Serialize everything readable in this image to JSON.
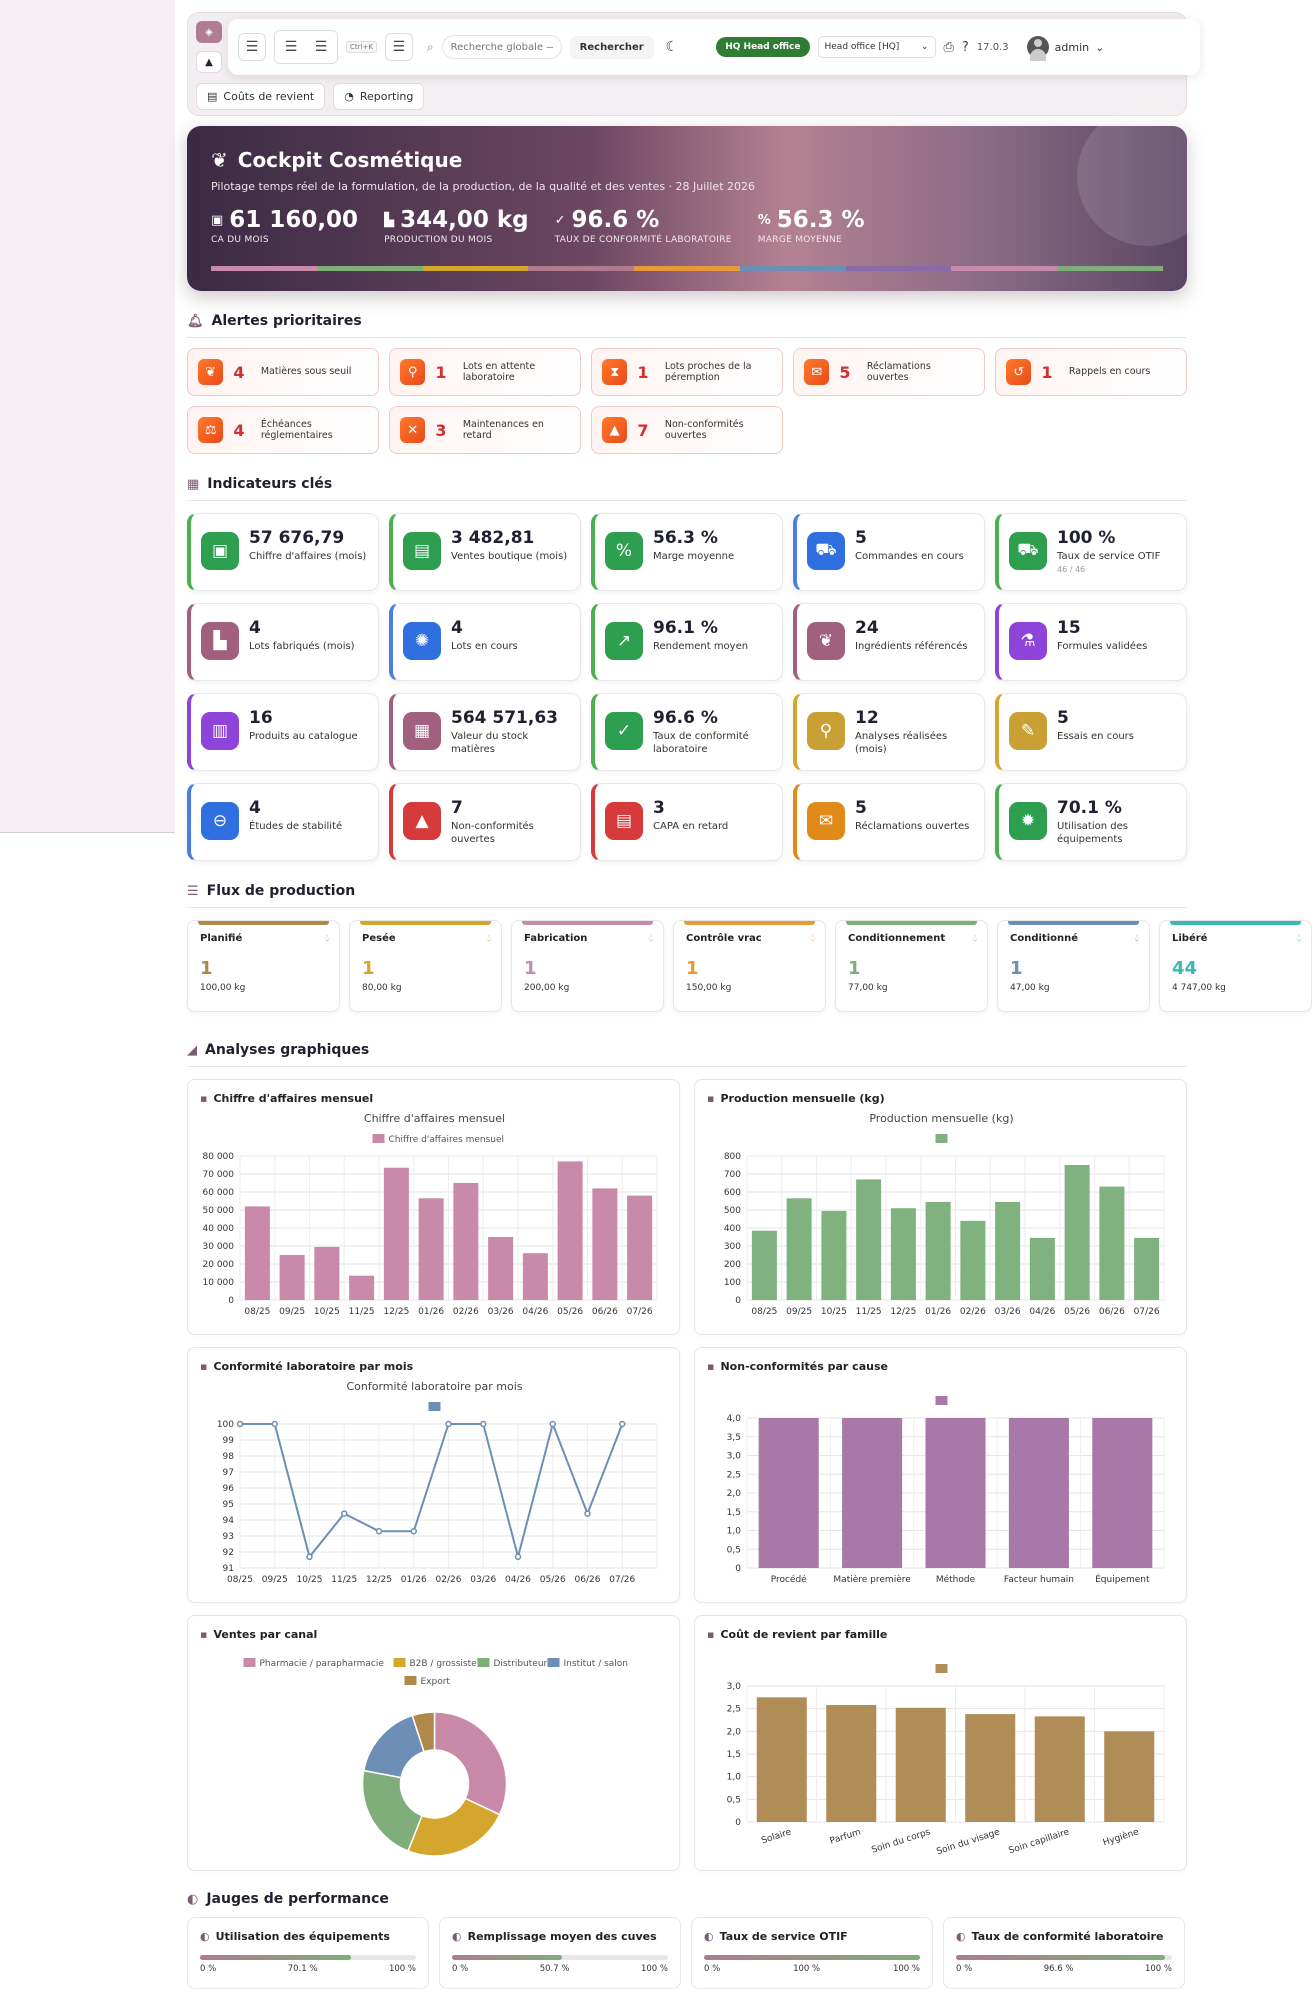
{
  "topbar": {
    "shortcut": "Ctrl+K",
    "search_placeholder": "Recherche globale —",
    "search_button": "Rechercher",
    "hq_badge": "HQ Head office",
    "office_select": "Head office [HQ]",
    "version": "17.0.3",
    "user": "admin",
    "subtabs": [
      "Coûts de revient",
      "Reporting"
    ]
  },
  "hero": {
    "title": "Cockpit Cosmétique",
    "subtitle": "Pilotage temps réel de la formulation, de la production, de la qualité et des ventes · 28 Juillet 2026",
    "kpis": [
      {
        "value": "61 160,00",
        "label": "CA DU MOIS",
        "icon": "money-icon"
      },
      {
        "value": "344,00 kg",
        "label": "PRODUCTION DU MOIS",
        "icon": "factory-icon"
      },
      {
        "value": "96.6 %",
        "label": "TAUX DE CONFORMITÉ LABORATOIRE",
        "icon": "check-icon"
      },
      {
        "value": "56.3 %",
        "label": "MARGE MOYENNE",
        "icon": "percent-icon"
      }
    ],
    "bar_colors": [
      "#c98aaa",
      "#7fae7a",
      "#d4a72c",
      "#b07b8f",
      "#e79a3a",
      "#6d8fb5",
      "#8b6aa8",
      "#c98aaa",
      "#7fae7a"
    ]
  },
  "alerts": {
    "title": "Alertes prioritaires",
    "items": [
      {
        "count": "4",
        "label": "Matières sous seuil",
        "icon": "leaf-icon"
      },
      {
        "count": "1",
        "label": "Lots en attente laboratoire",
        "icon": "microscope-icon"
      },
      {
        "count": "1",
        "label": "Lots proches de la péremption",
        "icon": "hourglass-icon"
      },
      {
        "count": "5",
        "label": "Réclamations ouvertes",
        "icon": "chat-icon"
      },
      {
        "count": "1",
        "label": "Rappels en cours",
        "icon": "undo-icon"
      },
      {
        "count": "4",
        "label": "Échéances réglementaires",
        "icon": "scale-icon"
      },
      {
        "count": "3",
        "label": "Maintenances en retard",
        "icon": "tools-icon"
      },
      {
        "count": "7",
        "label": "Non-conformités ouvertes",
        "icon": "warning-icon"
      }
    ]
  },
  "kpis": {
    "title": "Indicateurs clés",
    "items": [
      {
        "value": "57 676,79",
        "label": "Chiffre d'affaires (mois)",
        "icon": "money-icon",
        "color": "#2e9e4f",
        "border": "#4caf50"
      },
      {
        "value": "3 482,81",
        "label": "Ventes boutique (mois)",
        "icon": "register-icon",
        "color": "#2e9e4f",
        "border": "#4caf50"
      },
      {
        "value": "56.3 %",
        "label": "Marge moyenne",
        "icon": "percent-icon",
        "color": "#2e9e4f",
        "border": "#4caf50"
      },
      {
        "value": "5",
        "label": "Commandes en cours",
        "icon": "cart-icon",
        "color": "#2f6fe0",
        "border": "#4a7fe0"
      },
      {
        "value": "100 %",
        "label": "Taux de service OTIF",
        "sub": "46 / 46",
        "icon": "truck-icon",
        "color": "#2e9e4f",
        "border": "#4caf50"
      },
      {
        "value": "4",
        "label": "Lots fabriqués (mois)",
        "icon": "factory-icon",
        "color": "#a0607e",
        "border": "#a0607e"
      },
      {
        "value": "4",
        "label": "Lots en cours",
        "icon": "spinner-icon",
        "color": "#2f6fe0",
        "border": "#4a7fe0"
      },
      {
        "value": "96.1 %",
        "label": "Rendement moyen",
        "icon": "chart-up-icon",
        "color": "#2e9e4f",
        "border": "#4caf50"
      },
      {
        "value": "24",
        "label": "Ingrédients référencés",
        "icon": "leaf-icon",
        "color": "#a0607e",
        "border": "#a0607e"
      },
      {
        "value": "15",
        "label": "Formules validées",
        "icon": "flask-icon",
        "color": "#8e44d8",
        "border": "#8e44d8"
      },
      {
        "value": "16",
        "label": "Produits au catalogue",
        "icon": "spray-icon",
        "color": "#8e44d8",
        "border": "#8e44d8"
      },
      {
        "value": "564 571,63",
        "label": "Valeur du stock matières",
        "icon": "boxes-icon",
        "color": "#a0607e",
        "border": "#a0607e"
      },
      {
        "value": "96.6 %",
        "label": "Taux de conformité laboratoire",
        "icon": "check-icon",
        "color": "#2e9e4f",
        "border": "#4caf50"
      },
      {
        "value": "12",
        "label": "Analyses réalisées (mois)",
        "icon": "microscope-icon",
        "color": "#c9a033",
        "border": "#d4a72c"
      },
      {
        "value": "5",
        "label": "Essais en cours",
        "icon": "pipette-icon",
        "color": "#c9a033",
        "border": "#d4a72c"
      },
      {
        "value": "4",
        "label": "Études de stabilité",
        "icon": "thermometer-icon",
        "color": "#2f6fe0",
        "border": "#4a7fe0"
      },
      {
        "value": "7",
        "label": "Non-conformités ouvertes",
        "icon": "warning-icon",
        "color": "#d63a3a",
        "border": "#d63a3a"
      },
      {
        "value": "3",
        "label": "CAPA en retard",
        "icon": "clipboard-icon",
        "color": "#d63a3a",
        "border": "#d63a3a"
      },
      {
        "value": "5",
        "label": "Réclamations ouvertes",
        "icon": "chat-icon",
        "color": "#e08a1a",
        "border": "#e08a1a"
      },
      {
        "value": "70.1 %",
        "label": "Utilisation des équipements",
        "icon": "gears-icon",
        "color": "#2e9e4f",
        "border": "#4caf50"
      }
    ]
  },
  "flow": {
    "title": "Flux de production",
    "stages": [
      {
        "name": "Planifié",
        "count": "1",
        "kg": "100,00 kg",
        "color": "#b0894a"
      },
      {
        "name": "Pesée",
        "count": "1",
        "kg": "80,00 kg",
        "color": "#d4a72c"
      },
      {
        "name": "Fabrication",
        "count": "1",
        "kg": "200,00 kg",
        "color": "#c98aaa"
      },
      {
        "name": "Contrôle vrac",
        "count": "1",
        "kg": "150,00 kg",
        "color": "#e79a3a"
      },
      {
        "name": "Conditionnement",
        "count": "1",
        "kg": "77,00 kg",
        "color": "#7fae7a"
      },
      {
        "name": "Conditionné",
        "count": "1",
        "kg": "47,00 kg",
        "color": "#6d8fb5"
      },
      {
        "name": "Libéré",
        "count": "44",
        "kg": "4 747,00 kg",
        "color": "#3bb9b0"
      }
    ]
  },
  "charts_section": {
    "title": "Analyses graphiques"
  },
  "chart_data": [
    {
      "id": "ca",
      "card_title": "Chiffre d'affaires mensuel",
      "type": "bar",
      "title": "Chiffre d'affaires mensuel",
      "legend": [
        "Chiffre d'affaires mensuel"
      ],
      "color": "#c98aaa",
      "categories": [
        "08/25",
        "09/25",
        "10/25",
        "11/25",
        "12/25",
        "01/26",
        "02/26",
        "03/26",
        "04/26",
        "05/26",
        "06/26",
        "07/26"
      ],
      "values": [
        52000,
        25000,
        29500,
        13500,
        73500,
        56500,
        65000,
        35000,
        26000,
        77000,
        62000,
        58000
      ],
      "ylim": [
        0,
        80000
      ],
      "yticks": [
        "0",
        "10 000",
        "20 000",
        "30 000",
        "40 000",
        "50 000",
        "60 000",
        "70 000",
        "80 000"
      ]
    },
    {
      "id": "prod",
      "card_title": "Production mensuelle (kg)",
      "type": "bar",
      "title": "Production mensuelle (kg)",
      "legend": [
        ""
      ],
      "color": "#7fb27f",
      "categories": [
        "08/25",
        "09/25",
        "10/25",
        "11/25",
        "12/25",
        "01/26",
        "02/26",
        "03/26",
        "04/26",
        "05/26",
        "06/26",
        "07/26"
      ],
      "values": [
        385,
        565,
        495,
        670,
        510,
        545,
        440,
        545,
        345,
        750,
        630,
        345
      ],
      "ylim": [
        0,
        800
      ],
      "yticks": [
        "0",
        "100",
        "200",
        "300",
        "400",
        "500",
        "600",
        "700",
        "800"
      ]
    },
    {
      "id": "conf",
      "card_title": "Conformité laboratoire par mois",
      "type": "line",
      "title": "Conformité laboratoire par mois",
      "legend": [
        ""
      ],
      "color": "#6d8fb5",
      "categories": [
        "08/25",
        "09/25",
        "10/25",
        "11/25",
        "12/25",
        "01/26",
        "02/26",
        "03/26",
        "04/26",
        "05/26",
        "06/26",
        "07/26"
      ],
      "values": [
        100,
        100,
        91.7,
        94.4,
        93.3,
        93.3,
        100,
        100,
        91.7,
        100,
        94.4,
        100
      ],
      "ylim": [
        91,
        100
      ],
      "yticks": [
        "91",
        "92",
        "93",
        "94",
        "95",
        "96",
        "97",
        "98",
        "99",
        "100"
      ]
    },
    {
      "id": "nc",
      "card_title": "Non-conformités par cause",
      "type": "bar",
      "title": "",
      "legend": [
        ""
      ],
      "color": "#a878a8",
      "categories": [
        "Procédé",
        "Matière première",
        "Méthode",
        "Facteur humain",
        "Équipement"
      ],
      "values": [
        4,
        4,
        4,
        4,
        4
      ],
      "ylim": [
        0,
        4
      ],
      "yticks": [
        "0",
        "0,5",
        "1,0",
        "1,5",
        "2,0",
        "2,5",
        "3,0",
        "3,5",
        "4,0"
      ]
    },
    {
      "id": "canal",
      "card_title": "Ventes par canal",
      "type": "pie",
      "title": "",
      "categories": [
        "Pharmacie / parapharmacie",
        "B2B / grossiste",
        "Distributeur",
        "Institut / salon",
        "Export"
      ],
      "values": [
        32,
        24,
        22,
        17,
        5
      ],
      "colors": [
        "#c98aaa",
        "#d4a72c",
        "#7fae7a",
        "#6d8fb5",
        "#b0894a"
      ]
    },
    {
      "id": "cout",
      "card_title": "Coût de revient par famille",
      "type": "bar",
      "title": "",
      "legend": [
        ""
      ],
      "color": "#b08d56",
      "categories": [
        "Solaire",
        "Parfum",
        "Soin du corps",
        "Soin du visage",
        "Soin capillaire",
        "Hygiène"
      ],
      "values": [
        2.75,
        2.58,
        2.52,
        2.38,
        2.33,
        2.0
      ],
      "ylim": [
        0,
        3
      ],
      "yticks": [
        "0",
        "0,5",
        "1,0",
        "1,5",
        "2,0",
        "2,5",
        "3,0"
      ]
    }
  ],
  "gauges": {
    "title": "Jauges de performance",
    "items": [
      {
        "title": "Utilisation des équipements",
        "min": "0 %",
        "value_label": "70.1 %",
        "max": "100 %",
        "value": 70.1
      },
      {
        "title": "Remplissage moyen des cuves",
        "min": "0 %",
        "value_label": "50.7 %",
        "max": "100 %",
        "value": 50.7
      },
      {
        "title": "Taux de service OTIF",
        "min": "0 %",
        "value_label": "100 %",
        "max": "100 %",
        "value": 100
      },
      {
        "title": "Taux de conformité laboratoire",
        "min": "0 %",
        "value_label": "96.6 %",
        "max": "100 %",
        "value": 96.6
      }
    ]
  }
}
